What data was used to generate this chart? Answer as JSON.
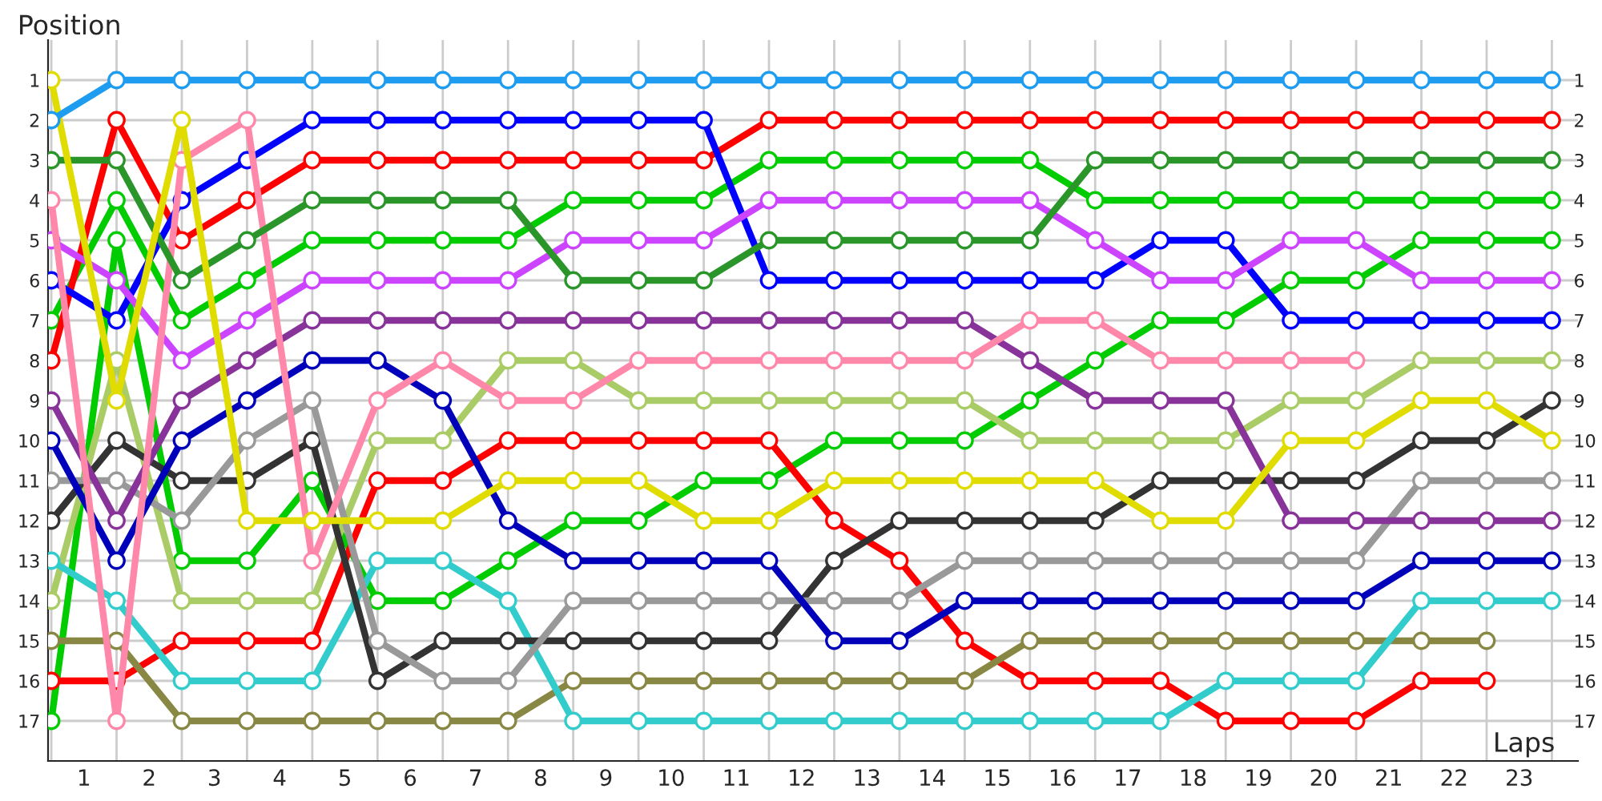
{
  "chart_data": {
    "type": "line",
    "xlabel": "Laps",
    "ylabel": "Position",
    "x": [
      0,
      1,
      2,
      3,
      4,
      5,
      6,
      7,
      8,
      9,
      10,
      11,
      12,
      13,
      14,
      15,
      16,
      17,
      18,
      19,
      20,
      21,
      22,
      23
    ],
    "series": [
      {
        "color": "#1e9cf0",
        "values": [
          2,
          1,
          1,
          1,
          1,
          1,
          1,
          1,
          1,
          1,
          1,
          1,
          1,
          1,
          1,
          1,
          1,
          1,
          1,
          1,
          1,
          1,
          1,
          1
        ]
      },
      {
        "color": "#e0dc00",
        "values": [
          1,
          9,
          2,
          12,
          12,
          12,
          12,
          11,
          11,
          11,
          12,
          12,
          11,
          11,
          11,
          11,
          11,
          12,
          12,
          10,
          10,
          9,
          9,
          10
        ]
      },
      {
        "color": "#2a962a",
        "values": [
          3,
          3,
          6,
          5,
          4,
          4,
          4,
          4,
          6,
          6,
          6,
          5,
          5,
          5,
          5,
          5,
          3,
          3,
          3,
          3,
          3,
          3,
          3,
          3
        ]
      },
      {
        "color": "#ff88aa",
        "values": [
          4,
          17,
          3,
          2,
          13,
          9,
          8,
          9,
          9,
          8,
          8,
          8,
          8,
          8,
          8,
          7,
          7,
          8,
          8,
          8,
          8,
          null,
          null,
          null
        ]
      },
      {
        "color": "#cc44ff",
        "values": [
          5,
          6,
          8,
          7,
          6,
          6,
          6,
          6,
          5,
          5,
          5,
          4,
          4,
          4,
          4,
          4,
          5,
          6,
          6,
          5,
          5,
          6,
          6,
          6
        ]
      },
      {
        "color": "#0000ff",
        "values": [
          6,
          7,
          4,
          3,
          2,
          2,
          2,
          2,
          2,
          2,
          2,
          6,
          6,
          6,
          6,
          6,
          6,
          5,
          5,
          7,
          7,
          7,
          7,
          7
        ]
      },
      {
        "color": "#ff0000",
        "values": [
          8,
          2,
          5,
          4,
          3,
          3,
          3,
          3,
          3,
          3,
          3,
          2,
          2,
          2,
          2,
          2,
          2,
          2,
          2,
          2,
          2,
          2,
          2,
          2
        ]
      },
      {
        "color": "#883399",
        "values": [
          9,
          12,
          9,
          8,
          7,
          7,
          7,
          7,
          7,
          7,
          7,
          7,
          7,
          7,
          7,
          8,
          9,
          9,
          9,
          12,
          12,
          12,
          12,
          12
        ]
      },
      {
        "color": "#0000bb",
        "values": [
          10,
          13,
          10,
          9,
          8,
          8,
          9,
          12,
          13,
          13,
          13,
          13,
          15,
          15,
          14,
          14,
          14,
          14,
          14,
          14,
          14,
          13,
          13,
          13
        ]
      },
      {
        "color": "#999999",
        "values": [
          11,
          11,
          12,
          10,
          9,
          15,
          16,
          16,
          14,
          14,
          14,
          14,
          14,
          14,
          13,
          13,
          13,
          13,
          13,
          13,
          13,
          11,
          11,
          11
        ]
      },
      {
        "color": "#333333",
        "values": [
          12,
          10,
          11,
          11,
          10,
          16,
          15,
          15,
          15,
          15,
          15,
          15,
          13,
          12,
          12,
          12,
          12,
          11,
          11,
          11,
          11,
          10,
          10,
          9
        ]
      },
      {
        "color": "#33cccc",
        "values": [
          13,
          14,
          16,
          16,
          16,
          13,
          13,
          14,
          17,
          17,
          17,
          17,
          17,
          17,
          17,
          17,
          17,
          17,
          16,
          16,
          16,
          14,
          14,
          14
        ]
      },
      {
        "color": "#aacc66",
        "values": [
          14,
          8,
          14,
          14,
          14,
          10,
          10,
          8,
          8,
          9,
          9,
          9,
          9,
          9,
          9,
          10,
          10,
          10,
          10,
          9,
          9,
          8,
          8,
          8
        ]
      },
      {
        "color": "#888844",
        "values": [
          15,
          15,
          17,
          17,
          17,
          17,
          17,
          17,
          16,
          16,
          16,
          16,
          16,
          16,
          16,
          15,
          15,
          15,
          15,
          15,
          15,
          15,
          15,
          null
        ]
      },
      {
        "color": "#ff0000",
        "values": [
          16,
          16,
          15,
          15,
          15,
          11,
          11,
          10,
          10,
          10,
          10,
          10,
          12,
          13,
          15,
          16,
          16,
          16,
          17,
          17,
          17,
          16,
          16,
          null
        ]
      },
      {
        "color": "#00cc00",
        "values": [
          17,
          5,
          13,
          13,
          11,
          14,
          14,
          13,
          12,
          12,
          11,
          11,
          10,
          10,
          10,
          9,
          8,
          7,
          7,
          6,
          6,
          5,
          5,
          5
        ]
      },
      {
        "color": "#00cc00",
        "values": [
          7,
          4,
          7,
          6,
          5,
          5,
          5,
          5,
          4,
          4,
          4,
          3,
          3,
          3,
          3,
          3,
          4,
          4,
          4,
          4,
          4,
          4,
          4,
          4
        ]
      }
    ],
    "xlim": [
      -0.05,
      23.4
    ],
    "xticks": [
      {
        "value": 0,
        "label": null
      },
      {
        "value": 1,
        "label": null
      },
      {
        "value": 2,
        "label": null
      },
      {
        "value": 3,
        "label": null
      },
      {
        "value": 4,
        "label": null
      },
      {
        "value": 5,
        "label": null
      },
      {
        "value": 6,
        "label": null
      },
      {
        "value": 7,
        "label": null
      },
      {
        "value": 8,
        "label": null
      },
      {
        "value": 9,
        "label": null
      },
      {
        "value": 10,
        "label": null
      },
      {
        "value": 11,
        "label": null
      },
      {
        "value": 12,
        "label": null
      },
      {
        "value": 13,
        "label": null
      },
      {
        "value": 14,
        "label": null
      },
      {
        "value": 15,
        "label": null
      },
      {
        "value": 16,
        "label": null
      },
      {
        "value": 17,
        "label": null
      },
      {
        "value": 18,
        "label": null
      },
      {
        "value": 19,
        "label": null
      },
      {
        "value": 20,
        "label": null
      },
      {
        "value": 21,
        "label": null
      },
      {
        "value": 22,
        "label": null
      },
      {
        "value": 23,
        "label": null
      },
      {
        "value": 0.5,
        "label": "1"
      },
      {
        "value": 1.5,
        "label": "2"
      },
      {
        "value": 2.5,
        "label": "3"
      },
      {
        "value": 3.5,
        "label": "4"
      },
      {
        "value": 4.5,
        "label": "5"
      },
      {
        "value": 5.5,
        "label": "6"
      },
      {
        "value": 6.5,
        "label": "7"
      },
      {
        "value": 7.5,
        "label": "8"
      },
      {
        "value": 8.5,
        "label": "9"
      },
      {
        "value": 9.5,
        "label": "10"
      },
      {
        "value": 10.5,
        "label": "11"
      },
      {
        "value": 11.5,
        "label": "12"
      },
      {
        "value": 12.5,
        "label": "13"
      },
      {
        "value": 13.5,
        "label": "14"
      },
      {
        "value": 14.5,
        "label": "15"
      },
      {
        "value": 15.5,
        "label": "16"
      },
      {
        "value": 16.5,
        "label": "17"
      },
      {
        "value": 17.5,
        "label": "18"
      },
      {
        "value": 18.5,
        "label": "19"
      },
      {
        "value": 19.5,
        "label": "20"
      },
      {
        "value": 20.5,
        "label": "21"
      },
      {
        "value": 21.5,
        "label": "22"
      },
      {
        "value": 22.5,
        "label": "23"
      }
    ],
    "ylim": [
      18,
      0
    ],
    "yticks": [
      1,
      2,
      3,
      4,
      5,
      6,
      7,
      8,
      9,
      10,
      11,
      12,
      13,
      14,
      15,
      16,
      17
    ],
    "y2lim": [
      18,
      0
    ],
    "y2ticks": [
      1,
      2,
      3,
      4,
      5,
      6,
      7,
      8,
      9,
      10,
      11,
      12,
      13,
      14,
      15,
      16,
      17
    ],
    "grid": true,
    "marker": "circle",
    "line_style": "solid",
    "legend": false
  }
}
